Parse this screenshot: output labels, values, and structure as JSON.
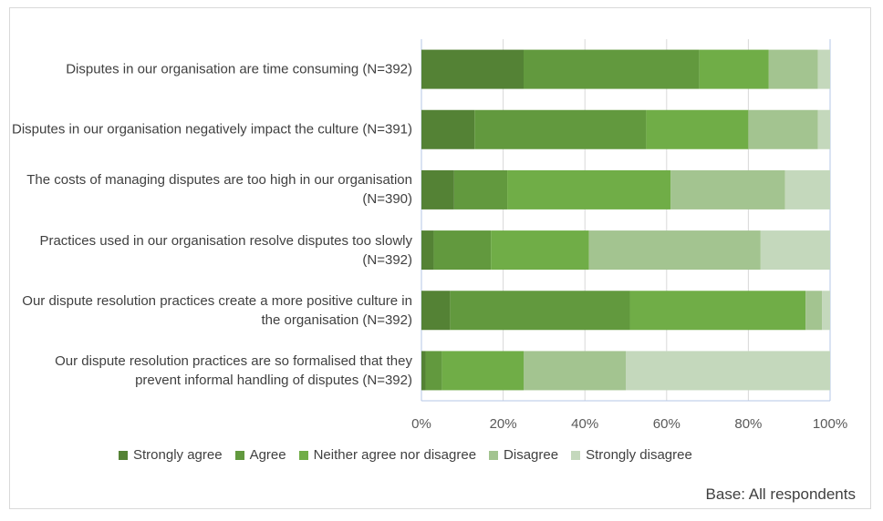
{
  "chart_data": {
    "type": "bar",
    "orientation": "horizontal",
    "stacked": "100%",
    "categories": [
      "Disputes in our organisation are time consuming (N=392)",
      "Disputes in our organisation negatively impact the culture (N=391)",
      "The costs of managing disputes are too high in our organisation (N=390)",
      "Practices used in our organisation resolve disputes too slowly (N=392)",
      "Our dispute resolution practices create a more positive culture in the organisation (N=392)",
      "Our dispute resolution practices are so formalised that they prevent informal handling of disputes (N=392)"
    ],
    "series": [
      {
        "name": "Strongly agree",
        "color": "#548235",
        "values": [
          25,
          13,
          8,
          3,
          7,
          1
        ]
      },
      {
        "name": "Agree",
        "color": "#62993e",
        "values": [
          43,
          42,
          13,
          14,
          44,
          4
        ]
      },
      {
        "name": "Neither agree nor disagree",
        "color": "#70ad47",
        "values": [
          17,
          25,
          40,
          24,
          43,
          20
        ]
      },
      {
        "name": "Disagree",
        "color": "#a3c490",
        "values": [
          12,
          17,
          28,
          42,
          4,
          25
        ]
      },
      {
        "name": "Strongly disagree",
        "color": "#c4d8bc",
        "values": [
          3,
          3,
          11,
          17,
          2,
          50
        ]
      }
    ],
    "xlim": [
      0,
      100
    ],
    "xticks": [
      "0%",
      "20%",
      "40%",
      "60%",
      "80%",
      "100%"
    ],
    "grid": true,
    "legend": "bottom",
    "footnote": "Base: All respondents"
  }
}
